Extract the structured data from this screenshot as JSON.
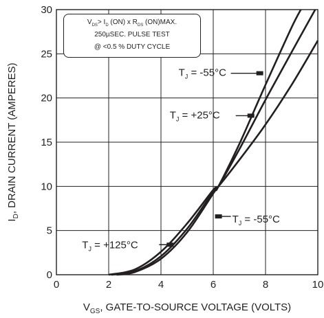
{
  "chart_data": {
    "type": "line",
    "xlabel_main": "V",
    "xlabel_sub": "GS",
    "xlabel_rest": ", GATE-TO-SOURCE VOLTAGE (VOLTS)",
    "ylabel_main": "I",
    "ylabel_sub": "D",
    "ylabel_rest": ", DRAIN CURRENT (AMPERES)",
    "xlim": [
      0,
      10
    ],
    "ylim": [
      0,
      30
    ],
    "x_ticks": [
      "0",
      "2",
      "4",
      "6",
      "8",
      "10"
    ],
    "y_ticks": [
      "0",
      "5",
      "10",
      "15",
      "20",
      "25",
      "30"
    ],
    "grid": true,
    "note": {
      "line1": {
        "a": "V",
        "a_sub": "DS",
        "b": "> I",
        "b_sub": "D",
        "c": " (ON) x  R",
        "c_sub": "DS",
        "d": " (ON)MAX."
      },
      "line2": "250µSEC. PULSE TEST",
      "line3": "@ <0.5 % DUTY CYCLE"
    },
    "series": [
      {
        "name": "T_J = -55°C",
        "x": [
          2.3,
          3.0,
          4.0,
          5.0,
          6.0,
          6.2,
          7.0,
          8.0,
          9.0,
          9.35
        ],
        "y": [
          0,
          0.3,
          1.8,
          4.8,
          9.2,
          10.0,
          14.8,
          21.5,
          28.0,
          30.0
        ]
      },
      {
        "name": "T_J = +25°C",
        "x": [
          2.1,
          3.0,
          4.0,
          5.0,
          6.0,
          6.2,
          7.0,
          8.0,
          9.0,
          9.9
        ],
        "y": [
          0,
          0.4,
          2.1,
          5.2,
          9.4,
          10.0,
          14.2,
          19.8,
          25.2,
          30.0
        ]
      },
      {
        "name": "T_J = +125°C",
        "x": [
          2.0,
          3.0,
          4.0,
          5.0,
          6.0,
          6.2,
          7.0,
          8.0,
          9.0,
          10.0
        ],
        "y": [
          0,
          0.6,
          2.6,
          5.8,
          9.6,
          10.0,
          13.0,
          17.0,
          21.5,
          26.5
        ]
      }
    ],
    "labels": [
      {
        "id": "upper-m55",
        "t": "T",
        "sub": "J",
        "rest": " = -55°C",
        "x": 7.78,
        "y": 22.8
      },
      {
        "id": "upper-p25",
        "t": "T",
        "sub": "J",
        "rest": " = +25°C",
        "x": 7.44,
        "y": 18.0
      },
      {
        "id": "lower-m55",
        "t": "T",
        "sub": "J",
        "rest": " = -55°C",
        "x": 6.2,
        "y": 6.6
      },
      {
        "id": "lower-p125",
        "t": "T",
        "sub": "J",
        "rest": " = +125°C",
        "x": 4.35,
        "y": 3.4
      }
    ],
    "colors": {
      "ink": "#231f20",
      "grid": "#231f20",
      "background": "#ffffff"
    }
  }
}
